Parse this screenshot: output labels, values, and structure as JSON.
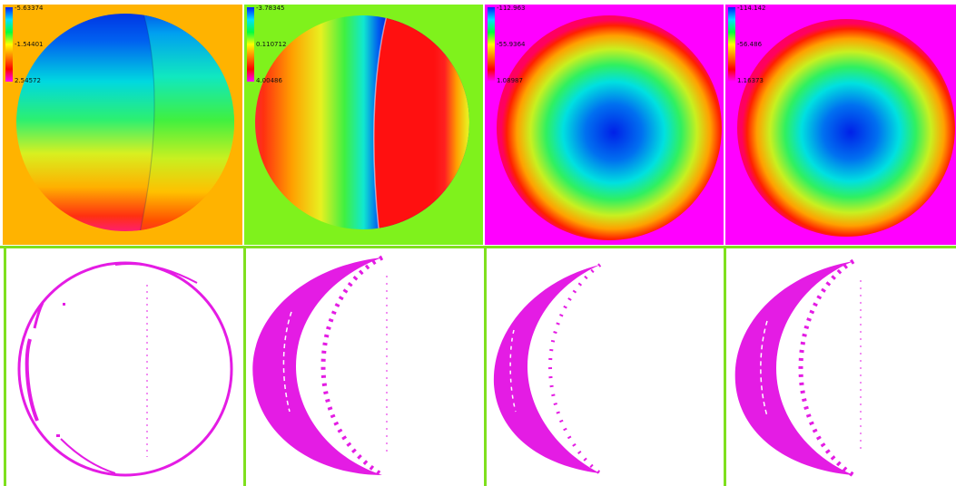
{
  "colors": {
    "separator": "#7fe01e",
    "error_magenta": "#e41ce4",
    "bg_orange": "#ffb300",
    "bg_green": "#7ff21c",
    "bg_magenta": "#ff00ff"
  },
  "panels_top": [
    {
      "id": "p1",
      "background": "#ffb300",
      "pattern": "horizontal-bands-seam",
      "colorbar": {
        "top": "-5.63374",
        "mid": "-1.54401",
        "bot": "2.54572"
      }
    },
    {
      "id": "p2",
      "background": "#7ff21c",
      "pattern": "vertical-bands-seam",
      "colorbar": {
        "top": "-3.78345",
        "mid": "0.110712",
        "bot": "4.00486"
      }
    },
    {
      "id": "p3",
      "background": "#ff00ff",
      "pattern": "radial-depth",
      "colorbar": {
        "top": "-112.963",
        "mid": "-55.9364",
        "bot": "1.08987"
      }
    },
    {
      "id": "p4",
      "background": "#ff00ff",
      "pattern": "radial-depth",
      "colorbar": {
        "top": "-114.142",
        "mid": "-56.486",
        "bot": "1.16373"
      }
    }
  ],
  "panels_bottom": [
    {
      "id": "e1",
      "pattern": "ring"
    },
    {
      "id": "e2",
      "pattern": "crescent-heavy"
    },
    {
      "id": "e3",
      "pattern": "crescent-light"
    },
    {
      "id": "e4",
      "pattern": "crescent-heavy"
    }
  ]
}
